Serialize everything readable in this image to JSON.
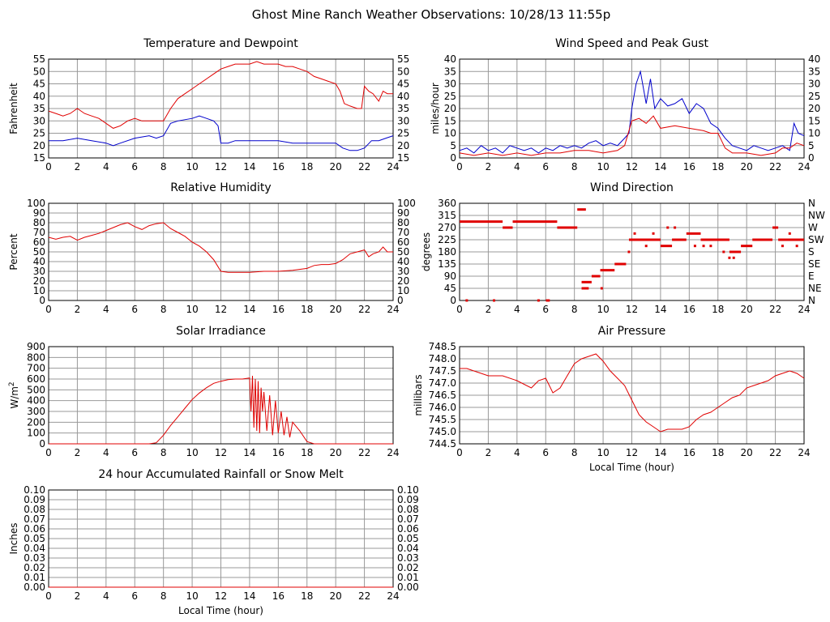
{
  "title": "Ghost Mine Ranch Weather Observations: 10/28/13 11:55p",
  "colors": {
    "red": "#e00000",
    "blue": "#0000cc",
    "grid": "#999999",
    "axis": "#000000"
  },
  "chart_data": [
    {
      "id": "temp",
      "type": "line",
      "title": "Temperature and Dewpoint",
      "xlabel": "",
      "ylabel": "Fahrenheit",
      "xlim": [
        0,
        24
      ],
      "ylim": [
        15,
        55
      ],
      "yticks": [
        "15",
        "20",
        "25",
        "30",
        "35",
        "40",
        "45",
        "50",
        "55"
      ],
      "yticks_right": [
        "15",
        "20",
        "25",
        "30",
        "35",
        "40",
        "45",
        "50",
        "55"
      ],
      "xticks": [
        "0",
        "2",
        "4",
        "6",
        "8",
        "10",
        "12",
        "14",
        "16",
        "18",
        "20",
        "22",
        "24"
      ],
      "series": [
        {
          "color": "#e00000",
          "x": [
            0,
            0.5,
            1,
            1.5,
            2,
            2.5,
            3,
            3.5,
            4,
            4.5,
            5,
            5.5,
            6,
            6.5,
            7,
            7.5,
            8,
            8.5,
            9,
            9.5,
            10,
            10.5,
            11,
            11.5,
            12,
            12.5,
            13,
            13.5,
            14,
            14.5,
            15,
            15.5,
            16,
            16.5,
            17,
            17.5,
            18,
            18.5,
            19,
            19.5,
            20,
            20.3,
            20.6,
            21,
            21.5,
            21.8,
            22,
            22.3,
            22.6,
            23,
            23.3,
            23.6,
            24
          ],
          "y": [
            34,
            33,
            32,
            33,
            35,
            33,
            32,
            31,
            29,
            27,
            28,
            30,
            31,
            30,
            30,
            30,
            30,
            35,
            39,
            41,
            43,
            45,
            47,
            49,
            51,
            52,
            53,
            53,
            53,
            54,
            53,
            53,
            53,
            52,
            52,
            51,
            50,
            48,
            47,
            46,
            45,
            42,
            37,
            36,
            35,
            35,
            44,
            42,
            41,
            38,
            42,
            41,
            41
          ]
        },
        {
          "color": "#0000cc",
          "x": [
            0,
            1,
            2,
            3,
            4,
            4.5,
            5,
            6,
            7,
            7.5,
            8,
            8.5,
            9,
            10,
            10.5,
            11,
            11.5,
            11.8,
            12,
            12.5,
            13,
            14,
            15,
            16,
            17,
            18,
            19,
            20,
            20.5,
            21,
            21.5,
            22,
            22.5,
            23,
            23.5,
            24
          ],
          "y": [
            22,
            22,
            23,
            22,
            21,
            20,
            21,
            23,
            24,
            23,
            24,
            29,
            30,
            31,
            32,
            31,
            30,
            28,
            21,
            21,
            22,
            22,
            22,
            22,
            21,
            21,
            21,
            21,
            19,
            18,
            18,
            19,
            22,
            22,
            23,
            24
          ]
        }
      ]
    },
    {
      "id": "wind",
      "type": "line",
      "title": "Wind Speed and Peak Gust",
      "xlabel": "",
      "ylabel": "miles/hour",
      "xlim": [
        0,
        24
      ],
      "ylim": [
        0,
        40
      ],
      "yticks": [
        "0",
        "5",
        "10",
        "15",
        "20",
        "25",
        "30",
        "35",
        "40"
      ],
      "yticks_right": [
        "0",
        "5",
        "10",
        "15",
        "20",
        "25",
        "30",
        "35",
        "40"
      ],
      "xticks": [
        "0",
        "2",
        "4",
        "6",
        "8",
        "10",
        "12",
        "14",
        "16",
        "18",
        "20",
        "22",
        "24"
      ],
      "series": [
        {
          "color": "#0000cc",
          "x": [
            0,
            0.5,
            1,
            1.5,
            2,
            2.5,
            3,
            3.5,
            4,
            4.5,
            5,
            5.5,
            6,
            6.5,
            7,
            7.5,
            8,
            8.5,
            9,
            9.5,
            10,
            10.5,
            11,
            11.5,
            11.8,
            12,
            12.3,
            12.6,
            13,
            13.3,
            13.6,
            14,
            14.5,
            15,
            15.5,
            16,
            16.5,
            17,
            17.5,
            18,
            18.5,
            19,
            19.5,
            20,
            20.5,
            21,
            21.5,
            22,
            22.5,
            23,
            23.3,
            23.6,
            24
          ],
          "y": [
            3,
            4,
            2,
            5,
            3,
            4,
            2,
            5,
            4,
            3,
            4,
            2,
            4,
            3,
            5,
            4,
            5,
            4,
            6,
            7,
            5,
            6,
            5,
            8,
            10,
            20,
            30,
            35,
            22,
            32,
            20,
            24,
            21,
            22,
            24,
            18,
            22,
            20,
            14,
            12,
            8,
            5,
            4,
            3,
            5,
            4,
            3,
            4,
            5,
            3,
            14,
            10,
            9
          ]
        },
        {
          "color": "#e00000",
          "x": [
            0,
            1,
            2,
            3,
            4,
            5,
            6,
            7,
            8,
            9,
            10,
            11,
            11.5,
            12,
            12.5,
            13,
            13.5,
            14,
            15,
            16,
            17,
            17.5,
            18,
            18.5,
            19,
            20,
            21,
            22,
            22.5,
            23,
            23.5,
            24
          ],
          "y": [
            2,
            1,
            2,
            1,
            2,
            1,
            2,
            2,
            3,
            3,
            2,
            3,
            5,
            15,
            16,
            14,
            17,
            12,
            13,
            12,
            11,
            10,
            10,
            4,
            2,
            2,
            1,
            2,
            4,
            4,
            6,
            5
          ]
        }
      ]
    },
    {
      "id": "humidity",
      "type": "line",
      "title": "Relative Humidity",
      "xlabel": "",
      "ylabel": "Percent",
      "xlim": [
        0,
        24
      ],
      "ylim": [
        0,
        100
      ],
      "yticks": [
        "0",
        "10",
        "20",
        "30",
        "40",
        "50",
        "60",
        "70",
        "80",
        "90",
        "100"
      ],
      "yticks_right": [
        "0",
        "10",
        "20",
        "30",
        "40",
        "50",
        "60",
        "70",
        "80",
        "90",
        "100"
      ],
      "xticks": [
        "0",
        "2",
        "4",
        "6",
        "8",
        "10",
        "12",
        "14",
        "16",
        "18",
        "20",
        "22",
        "24"
      ],
      "series": [
        {
          "color": "#e00000",
          "x": [
            0,
            0.5,
            1,
            1.5,
            2,
            2.5,
            3,
            3.5,
            4,
            4.5,
            5,
            5.5,
            6,
            6.5,
            7,
            7.5,
            8,
            8.5,
            9,
            9.5,
            10,
            10.5,
            11,
            11.5,
            12,
            12.5,
            13,
            14,
            15,
            16,
            17,
            18,
            18.5,
            19,
            19.5,
            20,
            20.5,
            21,
            21.5,
            22,
            22.3,
            22.6,
            23,
            23.3,
            23.6,
            24
          ],
          "y": [
            65,
            63,
            65,
            66,
            62,
            65,
            67,
            69,
            72,
            75,
            78,
            80,
            76,
            73,
            77,
            79,
            80,
            74,
            70,
            66,
            60,
            56,
            50,
            42,
            30,
            29,
            29,
            29,
            30,
            30,
            31,
            33,
            36,
            37,
            37,
            38,
            42,
            48,
            50,
            52,
            45,
            48,
            50,
            55,
            50,
            50
          ]
        }
      ]
    },
    {
      "id": "winddir",
      "type": "scatter",
      "title": "Wind Direction",
      "xlabel": "",
      "ylabel": "degrees",
      "xlim": [
        0,
        24
      ],
      "ylim": [
        0,
        360
      ],
      "yticks": [
        "0",
        "45",
        "90",
        "135",
        "180",
        "225",
        "270",
        "315",
        "360"
      ],
      "yticks_right": [
        "N",
        "NE",
        "E",
        "SE",
        "S",
        "SW",
        "W",
        "NW",
        "N"
      ],
      "xticks": [
        "0",
        "2",
        "4",
        "6",
        "8",
        "10",
        "12",
        "14",
        "16",
        "18",
        "20",
        "22",
        "24"
      ],
      "series": [
        {
          "color": "#e00000",
          "segments": [
            [
              0,
              3,
              292
            ],
            [
              3,
              3.7,
              270
            ],
            [
              3.7,
              6.8,
              292
            ],
            [
              6.8,
              8.2,
              270
            ],
            [
              8.2,
              8.8,
              337
            ],
            [
              8.5,
              9,
              45
            ],
            [
              8.5,
              9.2,
              68
            ],
            [
              9.2,
              9.8,
              90
            ],
            [
              9.8,
              10.8,
              112
            ],
            [
              10.8,
              11.6,
              135
            ],
            [
              11.8,
              14,
              225
            ],
            [
              14,
              14.8,
              202
            ],
            [
              14.8,
              15.8,
              225
            ],
            [
              15.8,
              16.8,
              248
            ],
            [
              16.8,
              18.8,
              225
            ],
            [
              18.8,
              19.6,
              180
            ],
            [
              19.6,
              20.4,
              202
            ],
            [
              20.4,
              21.8,
              225
            ],
            [
              21.8,
              22.2,
              270
            ],
            [
              22.2,
              24,
              225
            ]
          ],
          "points": [
            [
              0.5,
              0
            ],
            [
              2.4,
              0
            ],
            [
              5.5,
              0
            ],
            [
              6.1,
              0
            ],
            [
              6.2,
              0
            ],
            [
              9.9,
              45
            ],
            [
              11.8,
              180
            ],
            [
              12.2,
              248
            ],
            [
              13,
              202
            ],
            [
              13.5,
              248
            ],
            [
              14.5,
              270
            ],
            [
              15,
              270
            ],
            [
              16.4,
              202
            ],
            [
              17,
              202
            ],
            [
              17.5,
              202
            ],
            [
              18.4,
              180
            ],
            [
              18.8,
              158
            ],
            [
              19.1,
              158
            ],
            [
              22.5,
              202
            ],
            [
              23,
              248
            ],
            [
              23.5,
              202
            ]
          ]
        }
      ]
    },
    {
      "id": "solar",
      "type": "line",
      "title": "Solar Irradiance",
      "xlabel": "",
      "ylabel": "W/m²",
      "ylabel_main": "W/m",
      "ylabel_sup": "2",
      "xlim": [
        0,
        24
      ],
      "ylim": [
        0,
        900
      ],
      "yticks": [
        "0",
        "100",
        "200",
        "300",
        "400",
        "500",
        "600",
        "700",
        "800",
        "900"
      ],
      "yticks_right": [],
      "xticks": [
        "0",
        "2",
        "4",
        "6",
        "8",
        "10",
        "12",
        "14",
        "16",
        "18",
        "20",
        "22",
        "24"
      ],
      "series": [
        {
          "color": "#e00000",
          "x": [
            0,
            7,
            7.5,
            8,
            8.5,
            9,
            9.5,
            10,
            10.5,
            11,
            11.5,
            12,
            12.5,
            13,
            13.5,
            14,
            14.1,
            14.2,
            14.3,
            14.4,
            14.5,
            14.6,
            14.7,
            14.8,
            14.9,
            15,
            15.2,
            15.4,
            15.6,
            15.8,
            16,
            16.2,
            16.4,
            16.6,
            16.8,
            17,
            17.5,
            18,
            18.5,
            24
          ],
          "y": [
            0,
            0,
            10,
            80,
            170,
            250,
            330,
            410,
            470,
            520,
            560,
            580,
            595,
            600,
            600,
            610,
            300,
            630,
            150,
            600,
            120,
            580,
            100,
            520,
            300,
            480,
            120,
            450,
            80,
            400,
            100,
            300,
            80,
            250,
            60,
            200,
            120,
            20,
            0,
            0
          ]
        }
      ]
    },
    {
      "id": "pressure",
      "type": "line",
      "title": "Air Pressure",
      "xlabel": "Local Time (hour)",
      "ylabel": "millibars",
      "xlim": [
        0,
        24
      ],
      "ylim": [
        744.5,
        748.5
      ],
      "yticks": [
        "744.5",
        "745.0",
        "745.5",
        "746.0",
        "746.5",
        "747.0",
        "747.5",
        "748.0",
        "748.5"
      ],
      "yticks_right": [],
      "xticks": [
        "0",
        "2",
        "4",
        "6",
        "8",
        "10",
        "12",
        "14",
        "16",
        "18",
        "20",
        "22",
        "24"
      ],
      "series": [
        {
          "color": "#e00000",
          "x": [
            0,
            0.5,
            1,
            2,
            3,
            4,
            5,
            5.5,
            6,
            6.5,
            7,
            7.5,
            8,
            8.5,
            9,
            9.5,
            10,
            10.5,
            11,
            11.5,
            12,
            12.5,
            13,
            13.5,
            14,
            14.5,
            15,
            15.5,
            16,
            16.5,
            17,
            17.5,
            18,
            18.5,
            19,
            19.5,
            20,
            20.5,
            21,
            21.5,
            22,
            22.5,
            23,
            23.5,
            24
          ],
          "y": [
            747.6,
            747.6,
            747.5,
            747.3,
            747.3,
            747.1,
            746.8,
            747.1,
            747.2,
            746.6,
            746.8,
            747.3,
            747.8,
            748.0,
            748.1,
            748.2,
            747.9,
            747.5,
            747.2,
            746.9,
            746.3,
            745.7,
            745.4,
            745.2,
            745.0,
            745.1,
            745.1,
            745.1,
            745.2,
            745.5,
            745.7,
            745.8,
            746.0,
            746.2,
            746.4,
            746.5,
            746.8,
            746.9,
            747.0,
            747.1,
            747.3,
            747.4,
            747.5,
            747.4,
            747.2
          ]
        }
      ]
    },
    {
      "id": "rain",
      "type": "line",
      "title": "24 hour Accumulated Rainfall or Snow Melt",
      "xlabel": "Local Time (hour)",
      "ylabel": "Inches",
      "xlim": [
        0,
        24
      ],
      "ylim": [
        0,
        0.1
      ],
      "yticks": [
        "0.00",
        "0.01",
        "0.02",
        "0.03",
        "0.04",
        "0.05",
        "0.06",
        "0.07",
        "0.08",
        "0.09",
        "0.10"
      ],
      "yticks_right": [
        "0.00",
        "0.01",
        "0.02",
        "0.03",
        "0.04",
        "0.05",
        "0.06",
        "0.07",
        "0.08",
        "0.09",
        "0.10"
      ],
      "xticks": [
        "0",
        "2",
        "4",
        "6",
        "8",
        "10",
        "12",
        "14",
        "16",
        "18",
        "20",
        "22",
        "24"
      ],
      "series": [
        {
          "color": "#e00000",
          "x": [
            0,
            24
          ],
          "y": [
            0,
            0
          ]
        }
      ]
    }
  ]
}
